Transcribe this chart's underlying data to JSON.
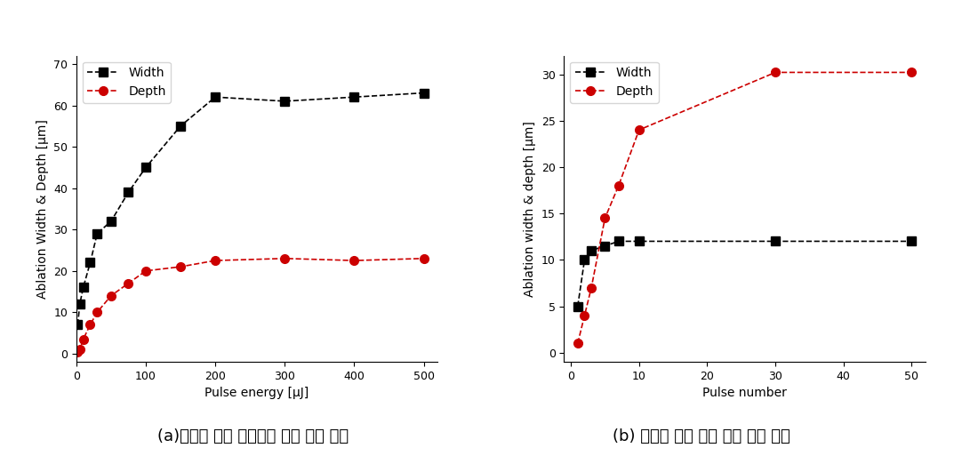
{
  "plot_a": {
    "width_x": [
      2,
      5,
      10,
      20,
      30,
      50,
      75,
      100,
      150,
      200,
      300,
      400,
      500
    ],
    "width_y": [
      7,
      12,
      16,
      22,
      29,
      32,
      39,
      45,
      55,
      62,
      61,
      62,
      63
    ],
    "depth_x": [
      2,
      5,
      10,
      20,
      30,
      50,
      75,
      100,
      150,
      200,
      300,
      400,
      500
    ],
    "depth_y": [
      0.5,
      1,
      3.5,
      7,
      10,
      14,
      17,
      20,
      21,
      22.5,
      23,
      22.5,
      23
    ],
    "xlabel": "Pulse energy [μJ]",
    "ylabel": "Ablation Width & Depth [μm]",
    "xlim": [
      0,
      520
    ],
    "ylim": [
      -2,
      72
    ],
    "xticks": [
      0,
      100,
      200,
      300,
      400,
      500
    ],
    "yticks": [
      0,
      10,
      20,
      30,
      40,
      50,
      60,
      70
    ]
  },
  "plot_b": {
    "width_x": [
      1,
      2,
      3,
      5,
      7,
      10,
      30,
      50
    ],
    "width_y": [
      5,
      10,
      11,
      11.5,
      12,
      12,
      12,
      12
    ],
    "depth_x": [
      1,
      2,
      3,
      5,
      7,
      10,
      30,
      50
    ],
    "depth_y": [
      1,
      4,
      7,
      14.5,
      18,
      24,
      30.2,
      30.2
    ],
    "xlabel": "Pulse number",
    "ylabel": "Ablation width & depth [μm]",
    "xlim": [
      -1,
      52
    ],
    "ylim": [
      -1,
      32
    ],
    "xticks": [
      0,
      10,
      20,
      30,
      40,
      50
    ],
    "yticks": [
      0,
      5,
      10,
      15,
      20,
      25,
      30
    ]
  },
  "caption_a": "(a)레이저 펄스 에너지에 따른 가공 특성",
  "caption_b": "(b) 레이저 펄스 수에 따른 가공 특성",
  "width_color": "#000000",
  "depth_color": "#cc0000",
  "marker_size": 7,
  "font_size_label": 10,
  "font_size_tick": 9,
  "font_size_legend": 10,
  "font_size_caption": 13
}
